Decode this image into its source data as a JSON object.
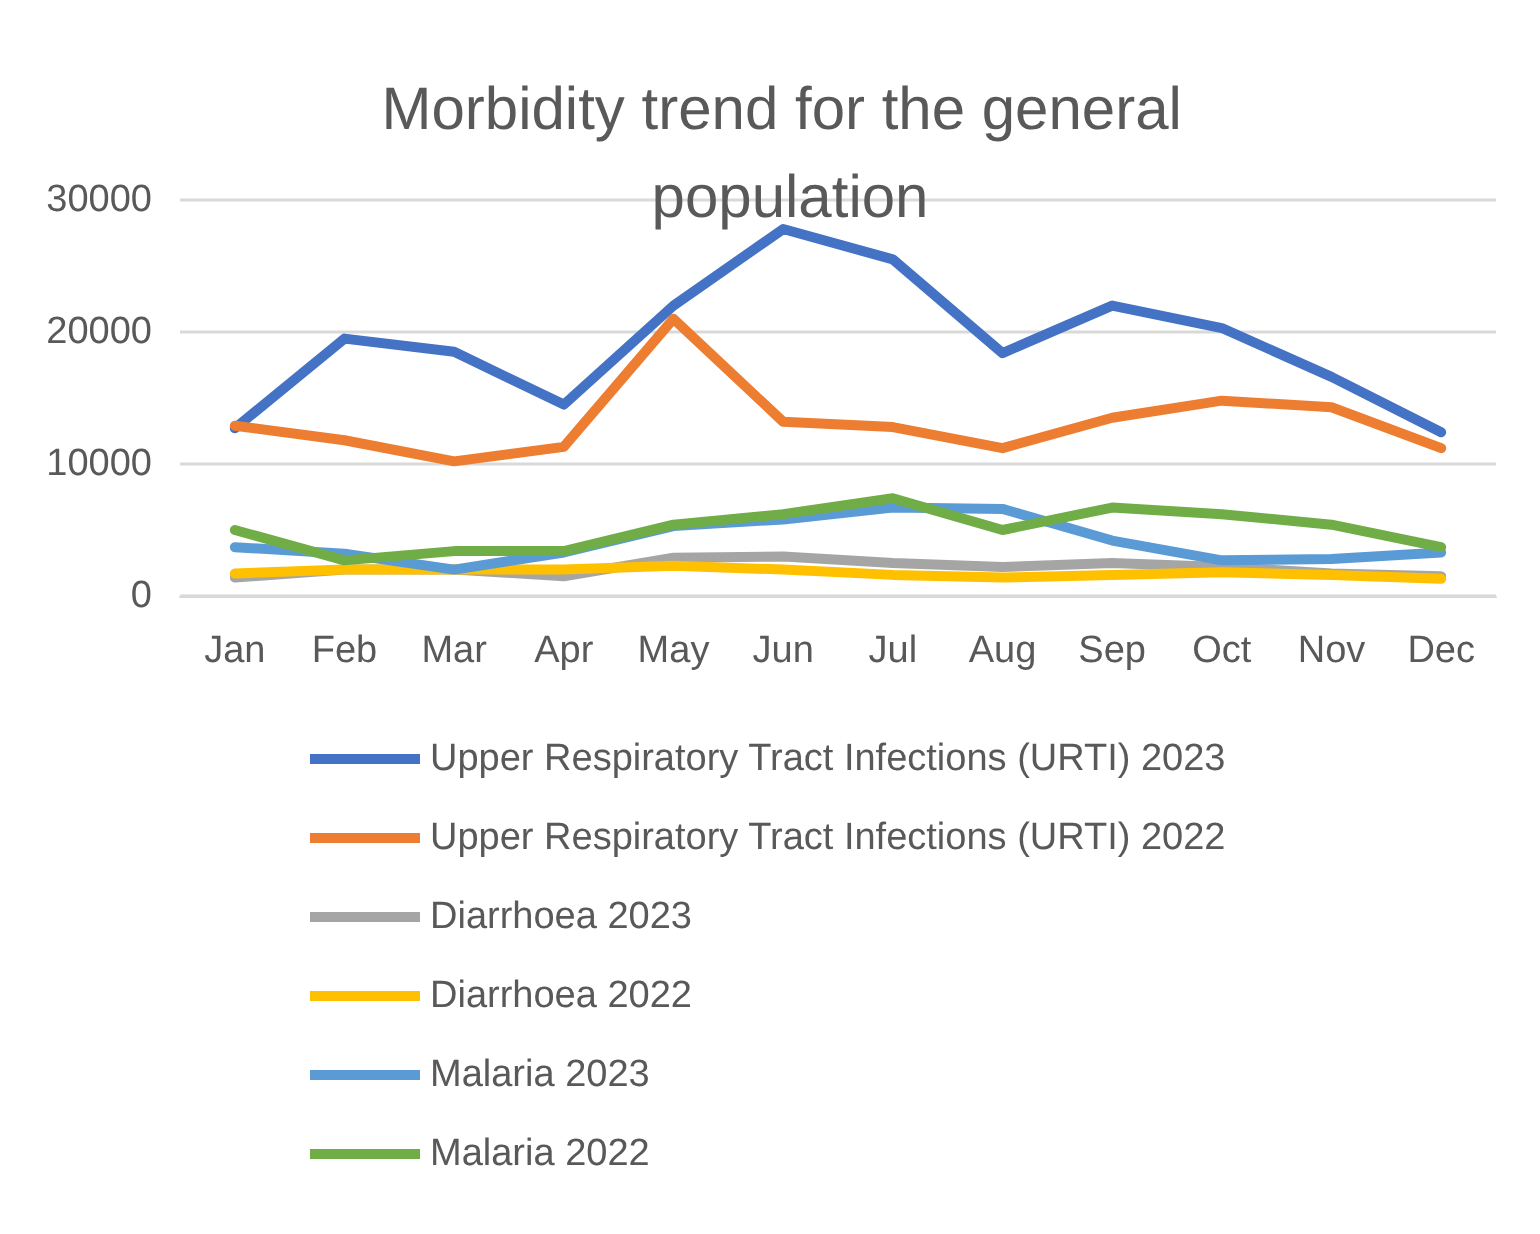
{
  "chart_data": {
    "type": "line",
    "title": "Morbidity trend for the general population",
    "categories": [
      "Jan",
      "Feb",
      "Mar",
      "Apr",
      "May",
      "Jun",
      "Jul",
      "Aug",
      "Sep",
      "Oct",
      "Nov",
      "Dec"
    ],
    "series": [
      {
        "name": "Upper Respiratory Tract Infections (URTI) 2023",
        "color": "#4472c4",
        "values": [
          12700,
          19500,
          18500,
          14500,
          22000,
          27800,
          25500,
          18400,
          22000,
          20300,
          16600,
          12400
        ]
      },
      {
        "name": "Upper Respiratory Tract Infections (URTI) 2022",
        "color": "#ed7d31",
        "values": [
          12900,
          11800,
          10200,
          11300,
          21000,
          13200,
          12800,
          11200,
          13500,
          14800,
          14300,
          11200
        ]
      },
      {
        "name": "Diarrhoea 2023",
        "color": "#a5a5a5",
        "values": [
          1400,
          2000,
          2000,
          1500,
          2900,
          3000,
          2500,
          2200,
          2500,
          2200,
          1700,
          1500
        ]
      },
      {
        "name": "Diarrhoea 2022",
        "color": "#ffc000",
        "values": [
          1700,
          2000,
          2000,
          2000,
          2300,
          2000,
          1600,
          1400,
          1600,
          1800,
          1600,
          1300
        ]
      },
      {
        "name": "Malaria 2023",
        "color": "#5b9bd5",
        "values": [
          3700,
          3200,
          2000,
          3300,
          5300,
          5800,
          6700,
          6600,
          4200,
          2700,
          2800,
          3300
        ]
      },
      {
        "name": "Malaria 2022",
        "color": "#70ad47",
        "values": [
          5000,
          2700,
          3400,
          3400,
          5400,
          6200,
          7400,
          5000,
          6700,
          6200,
          5400,
          3700
        ]
      }
    ],
    "ylim": [
      0,
      30000
    ],
    "yticks": [
      0,
      10000,
      20000,
      30000
    ],
    "grid": "y",
    "legend": "bottom",
    "marker": "none",
    "line_style": "solid"
  }
}
